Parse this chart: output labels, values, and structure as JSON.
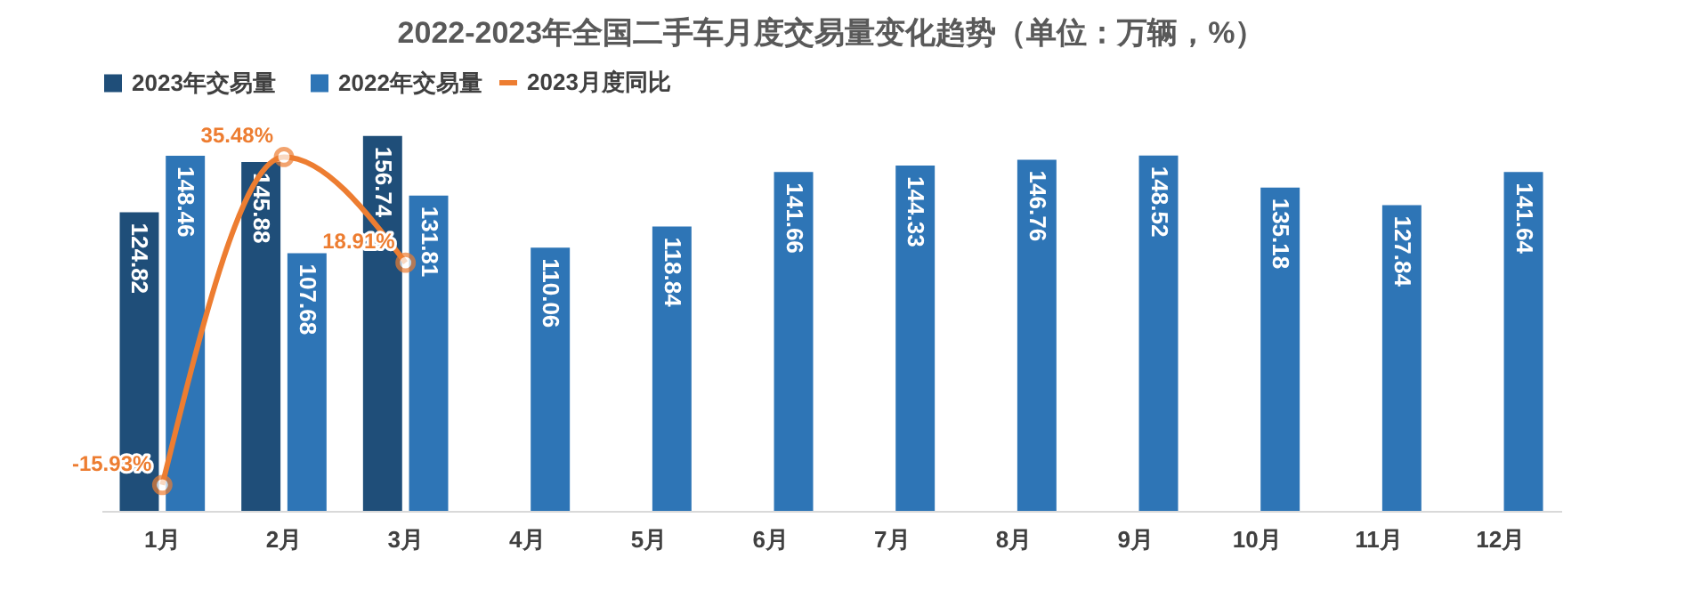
{
  "chart_data": {
    "type": "bar",
    "title": "2022-2023年全国二手车月度交易量变化趋势（单位：万辆，%）",
    "categories": [
      "1月",
      "2月",
      "3月",
      "4月",
      "5月",
      "6月",
      "7月",
      "8月",
      "9月",
      "10月",
      "11月",
      "12月"
    ],
    "legend": "top",
    "grid": false,
    "series": [
      {
        "name": "2023年交易量",
        "color": "#1f4e79",
        "values": [
          124.82,
          145.88,
          156.74,
          null,
          null,
          null,
          null,
          null,
          null,
          null,
          null,
          null
        ],
        "value_labels": [
          "124.82",
          "145.88",
          "156.74",
          null,
          null,
          null,
          null,
          null,
          null,
          null,
          null,
          null
        ]
      },
      {
        "name": "2022年交易量",
        "color": "#2e75b6",
        "values": [
          148.46,
          107.68,
          131.81,
          110.06,
          118.84,
          141.66,
          144.33,
          146.76,
          148.52,
          135.18,
          127.84,
          141.64
        ],
        "value_labels": [
          "148.46",
          "107.68",
          "131.81",
          "110.06",
          "118.84",
          "141.66",
          "144.33",
          "146.76",
          "148.52",
          "135.18",
          "127.84",
          "141.64"
        ]
      },
      {
        "name": "2023月度同比",
        "type": "line",
        "axis": "y2",
        "color": "#ed7d31",
        "marker": "circle",
        "values": [
          -15.93,
          35.48,
          18.91,
          null,
          null,
          null,
          null,
          null,
          null,
          null,
          null,
          null
        ],
        "value_labels": [
          "-15.93%",
          "35.48%",
          "18.91%",
          null,
          null,
          null,
          null,
          null,
          null,
          null,
          null,
          null
        ]
      }
    ]
  }
}
